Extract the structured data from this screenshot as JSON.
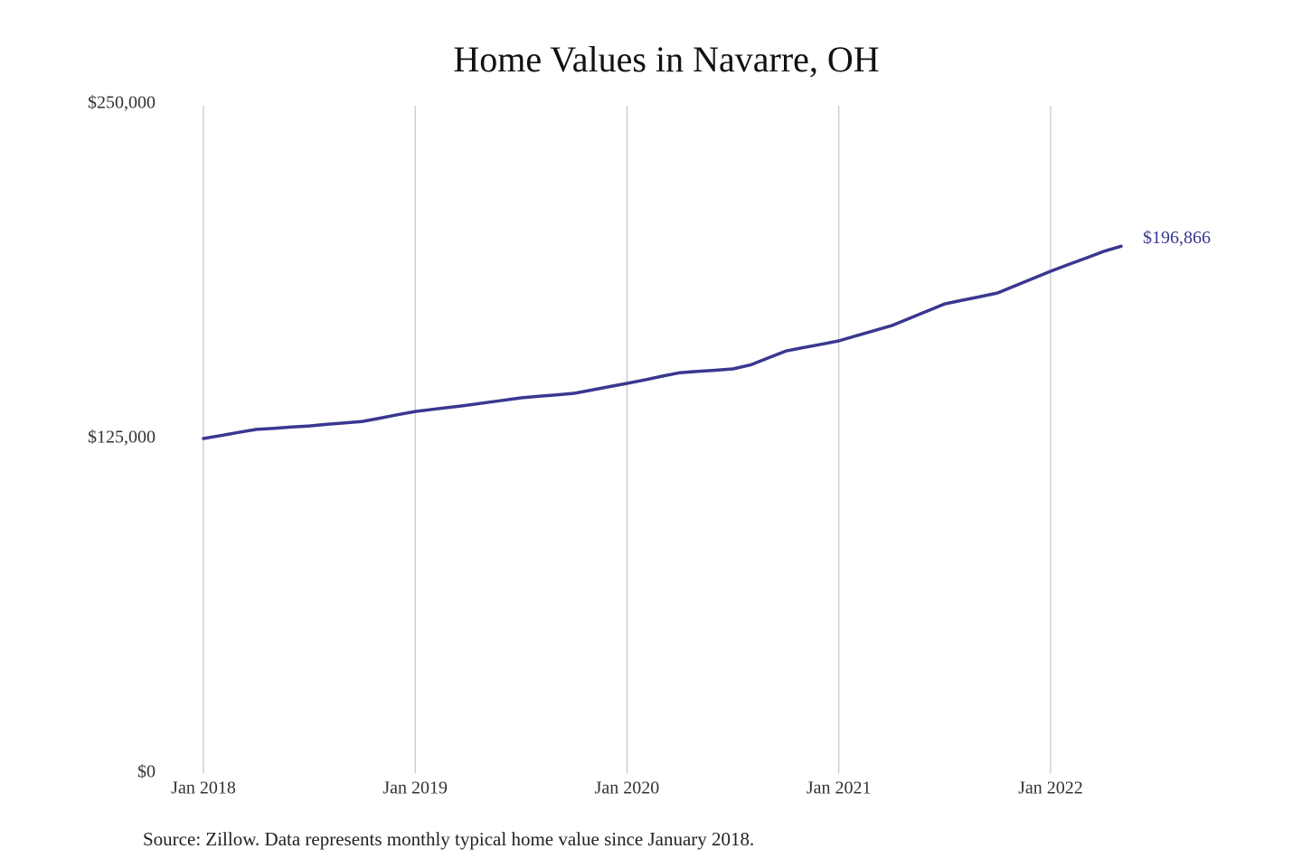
{
  "chart_data": {
    "type": "line",
    "title": "Home Values in Navarre, OH",
    "source": "Source: Zillow. Data represents monthly typical home value since January 2018.",
    "x": [
      "2018-01",
      "2018-02",
      "2018-03",
      "2018-04",
      "2018-05",
      "2018-06",
      "2018-07",
      "2018-08",
      "2018-09",
      "2018-10",
      "2018-11",
      "2018-12",
      "2019-01",
      "2019-02",
      "2019-03",
      "2019-04",
      "2019-05",
      "2019-06",
      "2019-07",
      "2019-08",
      "2019-09",
      "2019-10",
      "2019-11",
      "2019-12",
      "2020-01",
      "2020-02",
      "2020-03",
      "2020-04",
      "2020-05",
      "2020-06",
      "2020-07",
      "2020-08",
      "2020-09",
      "2020-10",
      "2020-11",
      "2020-12",
      "2021-01",
      "2021-02",
      "2021-03",
      "2021-04",
      "2021-05",
      "2021-06",
      "2021-07",
      "2021-08",
      "2021-09",
      "2021-10",
      "2021-11",
      "2021-12",
      "2022-01",
      "2022-02",
      "2022-03",
      "2022-04",
      "2022-05"
    ],
    "values": [
      125000,
      126100,
      127300,
      128400,
      128800,
      129300,
      129700,
      130300,
      130800,
      131400,
      132600,
      133900,
      135100,
      135900,
      136700,
      137500,
      138400,
      139300,
      140200,
      140800,
      141300,
      141900,
      143100,
      144400,
      145600,
      146900,
      148300,
      149600,
      150100,
      150500,
      151000,
      152500,
      155100,
      157700,
      159000,
      160200,
      161500,
      163400,
      165300,
      167200,
      169900,
      172600,
      175300,
      176700,
      178000,
      179400,
      182100,
      184800,
      187500,
      190000,
      192400,
      194900,
      196866
    ],
    "value_labels": [
      null,
      null,
      null,
      null,
      null,
      null,
      null,
      null,
      null,
      null,
      null,
      null,
      null,
      null,
      null,
      null,
      null,
      null,
      null,
      null,
      null,
      null,
      null,
      null,
      null,
      null,
      null,
      null,
      null,
      null,
      null,
      null,
      null,
      null,
      null,
      null,
      null,
      null,
      null,
      null,
      null,
      null,
      null,
      null,
      null,
      null,
      null,
      null,
      null,
      null,
      null,
      null,
      "$196,866"
    ],
    "color": "#3a3791",
    "ylim": [
      0,
      250000
    ],
    "yticks": [
      {
        "value": 0,
        "label": "$0"
      },
      {
        "value": 125000,
        "label": "$125,000"
      },
      {
        "value": 250000,
        "label": "$250,000"
      }
    ],
    "xticks": [
      {
        "value": "2018-01",
        "label": "Jan 2018"
      },
      {
        "value": "2019-01",
        "label": "Jan 2019"
      },
      {
        "value": "2020-01",
        "label": "Jan 2020"
      },
      {
        "value": "2021-01",
        "label": "Jan 2021"
      },
      {
        "value": "2022-01",
        "label": "Jan 2022"
      }
    ],
    "grid": "x"
  }
}
